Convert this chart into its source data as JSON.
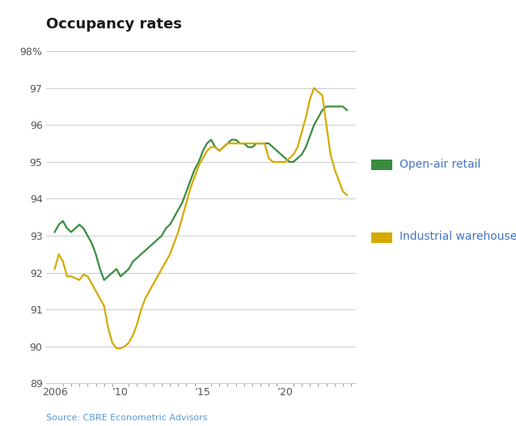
{
  "title": "Occupancy rates",
  "source": "Source: CBRE Econometric Advisors",
  "ylim": [
    89,
    98
  ],
  "yticks": [
    89,
    90,
    91,
    92,
    93,
    94,
    95,
    96,
    97,
    98
  ],
  "ytick_labels": [
    "89",
    "90",
    "91",
    "92",
    "93",
    "94",
    "95",
    "96",
    "97",
    "98%"
  ],
  "background_color": "#ffffff",
  "grid_color": "#cccccc",
  "open_air_retail_color": "#3a8c3f",
  "industrial_warehouses_color": "#d4aa00",
  "legend_text_color": "#4472c4",
  "source_color": "#5b9bd5",
  "title_color": "#1a1a1a",
  "legend_labels": [
    "Open-air retail",
    "Industrial warehouses"
  ],
  "open_air_retail_x": [
    2006.0,
    2006.25,
    2006.5,
    2006.75,
    2007.0,
    2007.25,
    2007.5,
    2007.75,
    2008.0,
    2008.25,
    2008.5,
    2008.75,
    2009.0,
    2009.25,
    2009.5,
    2009.75,
    2010.0,
    2010.25,
    2010.5,
    2010.75,
    2011.0,
    2011.25,
    2011.5,
    2011.75,
    2012.0,
    2012.25,
    2012.5,
    2012.75,
    2013.0,
    2013.25,
    2013.5,
    2013.75,
    2014.0,
    2014.25,
    2014.5,
    2014.75,
    2015.0,
    2015.25,
    2015.5,
    2015.75,
    2016.0,
    2016.25,
    2016.5,
    2016.75,
    2017.0,
    2017.25,
    2017.5,
    2017.75,
    2018.0,
    2018.25,
    2018.5,
    2018.75,
    2019.0,
    2019.25,
    2019.5,
    2019.75,
    2020.0,
    2020.25,
    2020.5,
    2020.75,
    2021.0,
    2021.25,
    2021.5,
    2021.75,
    2022.0,
    2022.25,
    2022.5,
    2022.75,
    2023.0,
    2023.25,
    2023.5,
    2023.75
  ],
  "open_air_retail_y": [
    93.1,
    93.3,
    93.4,
    93.2,
    93.1,
    93.2,
    93.3,
    93.2,
    93.0,
    92.8,
    92.5,
    92.1,
    91.8,
    91.9,
    92.0,
    92.1,
    91.9,
    92.0,
    92.1,
    92.3,
    92.4,
    92.5,
    92.6,
    92.7,
    92.8,
    92.9,
    93.0,
    93.2,
    93.3,
    93.5,
    93.7,
    93.9,
    94.2,
    94.5,
    94.8,
    95.0,
    95.3,
    95.5,
    95.6,
    95.4,
    95.3,
    95.4,
    95.5,
    95.6,
    95.6,
    95.5,
    95.5,
    95.4,
    95.4,
    95.5,
    95.5,
    95.5,
    95.5,
    95.4,
    95.3,
    95.2,
    95.1,
    95.0,
    95.0,
    95.1,
    95.2,
    95.4,
    95.7,
    96.0,
    96.2,
    96.4,
    96.5,
    96.5,
    96.5,
    96.5,
    96.5,
    96.4
  ],
  "industrial_warehouses_x": [
    2006.0,
    2006.25,
    2006.5,
    2006.75,
    2007.0,
    2007.25,
    2007.5,
    2007.75,
    2008.0,
    2008.25,
    2008.5,
    2008.75,
    2009.0,
    2009.25,
    2009.5,
    2009.75,
    2010.0,
    2010.25,
    2010.5,
    2010.75,
    2011.0,
    2011.25,
    2011.5,
    2011.75,
    2012.0,
    2012.25,
    2012.5,
    2012.75,
    2013.0,
    2013.25,
    2013.5,
    2013.75,
    2014.0,
    2014.25,
    2014.5,
    2014.75,
    2015.0,
    2015.25,
    2015.5,
    2015.75,
    2016.0,
    2016.25,
    2016.5,
    2016.75,
    2017.0,
    2017.25,
    2017.5,
    2017.75,
    2018.0,
    2018.25,
    2018.5,
    2018.75,
    2019.0,
    2019.25,
    2019.5,
    2019.75,
    2020.0,
    2020.25,
    2020.5,
    2020.75,
    2021.0,
    2021.25,
    2021.5,
    2021.75,
    2022.0,
    2022.25,
    2022.5,
    2022.75,
    2023.0,
    2023.25,
    2023.5,
    2023.75
  ],
  "industrial_warehouses_y": [
    92.1,
    92.5,
    92.3,
    91.9,
    91.9,
    91.85,
    91.8,
    91.95,
    91.9,
    91.7,
    91.5,
    91.3,
    91.1,
    90.5,
    90.1,
    89.95,
    89.95,
    90.0,
    90.1,
    90.3,
    90.6,
    91.0,
    91.3,
    91.5,
    91.7,
    91.9,
    92.1,
    92.3,
    92.5,
    92.8,
    93.1,
    93.5,
    93.9,
    94.3,
    94.6,
    94.9,
    95.1,
    95.3,
    95.4,
    95.4,
    95.3,
    95.4,
    95.5,
    95.5,
    95.5,
    95.5,
    95.5,
    95.5,
    95.5,
    95.5,
    95.5,
    95.5,
    95.1,
    95.0,
    95.0,
    95.0,
    95.0,
    95.1,
    95.2,
    95.4,
    95.8,
    96.2,
    96.7,
    97.0,
    96.9,
    96.8,
    96.0,
    95.2,
    94.8,
    94.5,
    94.2,
    94.1
  ]
}
